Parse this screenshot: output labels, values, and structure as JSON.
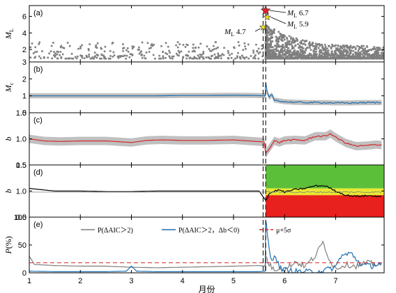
{
  "colors": {
    "grey_points": "#7f7f7f",
    "blue_line": "#1f6fb0",
    "red_line": "#d62728",
    "band_grey": "#c0c0c0",
    "zone_green": "#5cbf3a",
    "zone_yellow": "#e8e832",
    "zone_red": "#e8201e",
    "star_large": "#e0202a",
    "star_yellow": "#f2e21a"
  },
  "xaxis": {
    "label": "月份",
    "ticks": [
      "1",
      "2",
      "3",
      "4",
      "5",
      "6",
      "7"
    ]
  },
  "chart_data": [
    {
      "type": "scatter",
      "panel": "(a)",
      "ylabel_main": "M",
      "ylabel_sub": "L",
      "ylim": [
        0.5,
        7.3
      ],
      "yticks": [
        "2",
        "4",
        "6"
      ],
      "xlim": [
        1,
        7.95
      ],
      "description_series": "earthquake magnitudes over time",
      "mainshock_time": 5.63,
      "annotations": [
        {
          "main": "M",
          "sub": "L",
          "value": "6.7",
          "x": 5.63,
          "y": 6.7
        },
        {
          "main": "M",
          "sub": "L",
          "value": "5.9",
          "x": 5.66,
          "y": 5.9
        },
        {
          "main": "M",
          "sub": "L",
          "value": "4.7",
          "x": 5.58,
          "y": 4.7
        }
      ],
      "highlight_events": [
        {
          "x": 5.63,
          "y": 6.7,
          "marker": "star",
          "color": "red"
        },
        {
          "x": 5.66,
          "y": 5.9,
          "marker": "star",
          "color": "yellow"
        },
        {
          "x": 5.58,
          "y": 4.7,
          "marker": "star",
          "color": "yellow"
        }
      ]
    },
    {
      "type": "line",
      "panel": "(b)",
      "ylabel_main": "M",
      "ylabel_sub": "c",
      "ylim": [
        0,
        3
      ],
      "yticks": [
        "0",
        "1",
        "2",
        "3"
      ],
      "series": [
        {
          "color": "blue",
          "x": [
            1,
            1.5,
            2,
            2.5,
            3,
            3.5,
            4,
            4.5,
            5,
            5.4,
            5.62,
            5.63,
            5.66,
            5.7,
            5.75,
            5.8,
            5.9,
            6.0,
            6.2,
            6.5,
            6.8,
            7.0,
            7.3,
            7.6,
            7.9
          ],
          "y": [
            1.0,
            1.0,
            1.0,
            1.0,
            1.0,
            1.0,
            1.02,
            1.02,
            1.03,
            1.02,
            1.0,
            1.8,
            1.2,
            0.9,
            1.05,
            0.75,
            0.7,
            0.65,
            0.62,
            0.6,
            0.6,
            0.58,
            0.58,
            0.6,
            0.6
          ],
          "band": 0.15
        }
      ]
    },
    {
      "type": "line",
      "panel": "(c)",
      "ylabel_main": "b",
      "ylim": [
        0.5,
        1.5
      ],
      "yticks": [
        "0.5",
        "1.0",
        "1.5"
      ],
      "series": [
        {
          "color": "red",
          "x": [
            1,
            1.3,
            1.6,
            2,
            2.5,
            3,
            3.3,
            3.6,
            4,
            4.5,
            5,
            5.3,
            5.6,
            5.63,
            5.7,
            5.8,
            5.9,
            6.0,
            6.2,
            6.4,
            6.6,
            6.8,
            6.9,
            7.0,
            7.2,
            7.4,
            7.6,
            7.8,
            7.9
          ],
          "y": [
            1.0,
            0.96,
            0.95,
            0.96,
            0.96,
            0.93,
            0.97,
            0.98,
            0.97,
            0.97,
            0.98,
            0.96,
            0.94,
            0.72,
            0.82,
            0.96,
            0.93,
            0.97,
            0.98,
            0.97,
            1.05,
            1.05,
            1.1,
            1.03,
            0.92,
            0.86,
            0.87,
            0.89,
            0.88
          ],
          "band": 0.08
        }
      ]
    },
    {
      "type": "line",
      "panel": "(d)",
      "ylabel_main": "b",
      "ylim": [
        0.5,
        1.5
      ],
      "yticks": [
        "0.5",
        "1.0",
        "1.5"
      ],
      "zones_after_mainshock": [
        {
          "color": "green",
          "from": 1.05,
          "to": 1.5
        },
        {
          "color": "yellow",
          "from": 0.92,
          "to": 1.05
        },
        {
          "color": "red",
          "from": 0.5,
          "to": 0.92
        }
      ],
      "series": [
        {
          "color": "black",
          "x": [
            1,
            1.5,
            2,
            2.5,
            3,
            3.5,
            4,
            4.5,
            5,
            5.5,
            5.63,
            5.7,
            5.8,
            5.9,
            6.0,
            6.2,
            6.4,
            6.6,
            6.8,
            7.0,
            7.2,
            7.4,
            7.6,
            7.9
          ],
          "y": [
            1.05,
            1.0,
            1.0,
            0.99,
            0.99,
            1.0,
            1.0,
            1.0,
            1.0,
            1.0,
            0.82,
            0.95,
            1.0,
            1.02,
            0.98,
            1.03,
            1.05,
            1.1,
            1.1,
            1.0,
            0.92,
            0.9,
            0.91,
            0.9
          ]
        },
        {
          "color": "grey",
          "x": [
            1,
            2,
            3,
            4,
            5,
            5.6,
            5.63,
            6,
            7,
            7.9
          ],
          "y": [
            0.98,
            0.98,
            0.98,
            0.98,
            0.98,
            0.98,
            0.98,
            0.98,
            0.98,
            0.98
          ]
        }
      ]
    },
    {
      "type": "line",
      "panel": "(e)",
      "ylabel_main": "P",
      "ylabel_suffix": "(%)",
      "ylim": [
        0,
        100
      ],
      "yticks": [
        "0",
        "50",
        "100"
      ],
      "legend": [
        {
          "label": "P(ΔAIC＞2)",
          "color": "grey"
        },
        {
          "label": "P(ΔAIC＞2，Δb＜0)",
          "color": "blue"
        },
        {
          "label": "μ+5σ",
          "color": "red",
          "style": "dashed"
        }
      ],
      "threshold": 18,
      "series": [
        {
          "name": "P(ΔAIC＞2)",
          "color": "grey",
          "x": [
            1,
            1.1,
            1.5,
            2,
            2.5,
            3,
            3.5,
            4,
            4.5,
            5,
            5.5,
            5.62,
            5.63,
            5.7,
            5.8,
            5.9,
            6.0,
            6.2,
            6.4,
            6.6,
            6.75,
            6.9,
            7.0,
            7.2,
            7.4,
            7.6,
            7.9
          ],
          "y": [
            30,
            15,
            13,
            12,
            12,
            10,
            9,
            10,
            11,
            12,
            13,
            12,
            30,
            15,
            5,
            10,
            5,
            20,
            12,
            30,
            55,
            20,
            8,
            15,
            12,
            18,
            15
          ]
        },
        {
          "name": "P(ΔAIC＞2，Δb＜0)",
          "color": "blue",
          "x": [
            1,
            1.5,
            2,
            2.5,
            2.9,
            3.0,
            3.1,
            3.5,
            4,
            4.5,
            5,
            5.5,
            5.62,
            5.63,
            5.66,
            5.7,
            5.75,
            5.8,
            5.9,
            6.0,
            6.2,
            6.4,
            6.6,
            6.8,
            7.0,
            7.1,
            7.3,
            7.5,
            7.7,
            7.9
          ],
          "y": [
            3,
            2,
            2,
            2,
            3,
            12,
            3,
            2,
            2,
            2,
            2,
            2,
            3,
            95,
            70,
            40,
            20,
            35,
            10,
            5,
            3,
            2,
            2,
            5,
            10,
            30,
            35,
            15,
            12,
            18
          ]
        }
      ]
    }
  ]
}
